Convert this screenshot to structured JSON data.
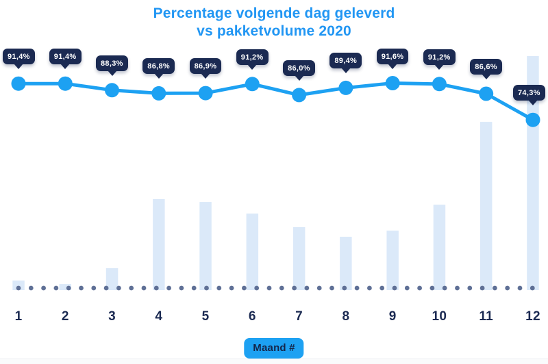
{
  "title": {
    "line1": "Percentage volgende dag geleverd",
    "line2": "vs pakketvolume 2020"
  },
  "x_axis": {
    "label_badge": "Maand #"
  },
  "chart_data": {
    "type": "combo (line over bar)",
    "title": "Percentage volgende dag geleverd vs pakketvolume 2020",
    "categories": [
      "1",
      "2",
      "3",
      "4",
      "5",
      "6",
      "7",
      "8",
      "9",
      "10",
      "11",
      "12"
    ],
    "xlabel": "Maand #",
    "ylabel": "",
    "legend": "none",
    "grid": "none",
    "baseline_style": "dotted row of slate dots at zero line",
    "series": [
      {
        "name": "Percentage volgende dag geleverd",
        "type": "line",
        "unit": "%",
        "values": [
          91.4,
          91.4,
          88.3,
          86.8,
          86.9,
          91.2,
          86.0,
          89.4,
          91.6,
          91.2,
          86.6,
          74.3
        ],
        "point_labels": [
          "91,4%",
          "91,4%",
          "88,3%",
          "86,8%",
          "86,9%",
          "91,2%",
          "86,0%",
          "89,4%",
          "91,6%",
          "91,2%",
          "86,6%",
          "74,3%"
        ],
        "point_label_style": "dark navy tooltip bubble with down pointer above each marker"
      },
      {
        "name": "Pakketvolume 2020",
        "type": "bar",
        "unit": "relative volume index (no value axis shown, max month = 100)",
        "values": [
          4.1,
          2.6,
          9.4,
          38.9,
          37.7,
          32.7,
          26.9,
          22.8,
          25.4,
          36.5,
          71.9,
          100
        ]
      }
    ]
  },
  "colors": {
    "title_blue": "#2196f3",
    "line_blue": "#1da1f2",
    "badge_blue": "#1da1f2",
    "tooltip_navy": "#1b2a52",
    "bar_fill": "#dbe9f9",
    "baseline_dot": "#5f7096",
    "axis_label_navy": "#1b2a52",
    "badge_text_navy": "#14264a",
    "background": "#ffffff"
  }
}
